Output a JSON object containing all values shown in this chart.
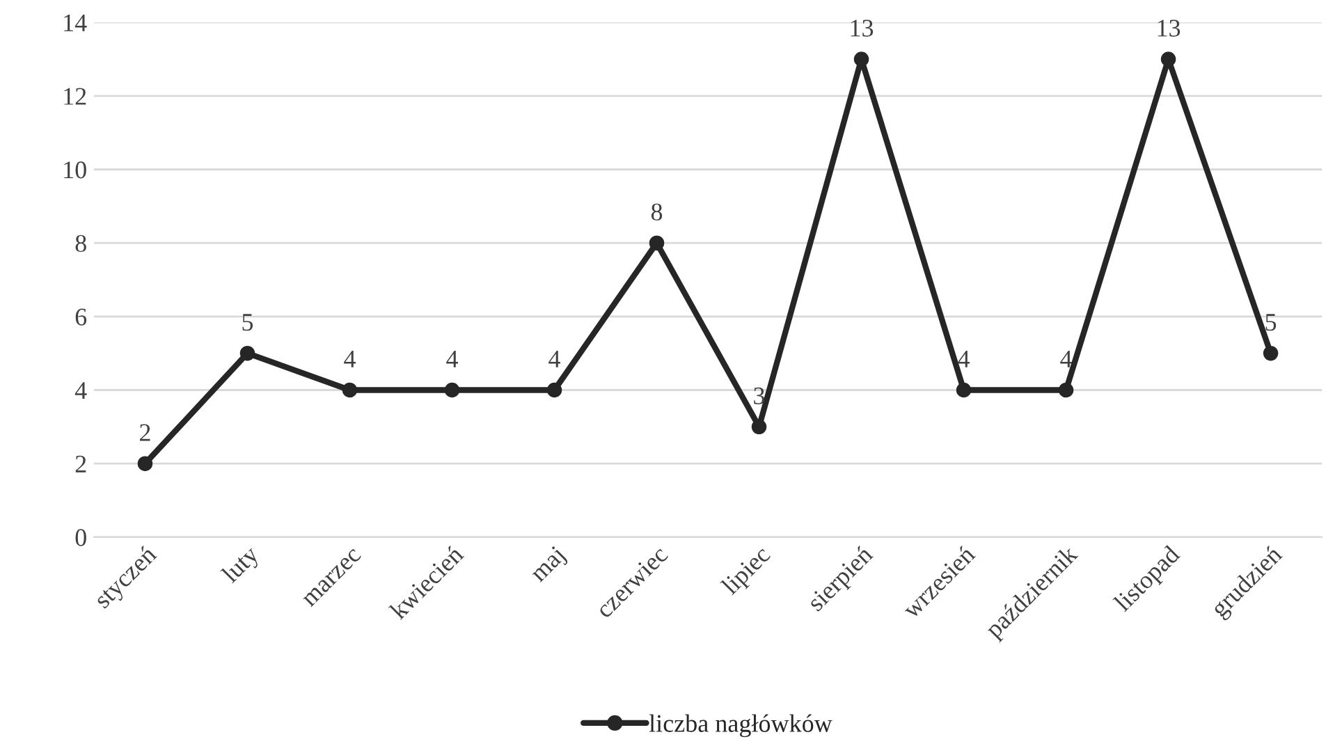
{
  "chart_data": {
    "type": "line",
    "categories": [
      "styczeń",
      "luty",
      "marzec",
      "kwiecień",
      "maj",
      "czerwiec",
      "lipiec",
      "sierpień",
      "wrzesień",
      "październik",
      "listopad",
      "grudzień"
    ],
    "series": [
      {
        "name": "liczba nagłówków",
        "color": "#262626",
        "values": [
          2,
          5,
          4,
          4,
          4,
          8,
          3,
          13,
          4,
          4,
          13,
          5
        ]
      }
    ],
    "ylim": [
      0,
      14
    ],
    "yticks": [
      0,
      2,
      4,
      6,
      8,
      10,
      12,
      14
    ],
    "grid": "y",
    "legend": "bottom",
    "marker": "circle",
    "line_style": "solid",
    "data_labels": true
  }
}
